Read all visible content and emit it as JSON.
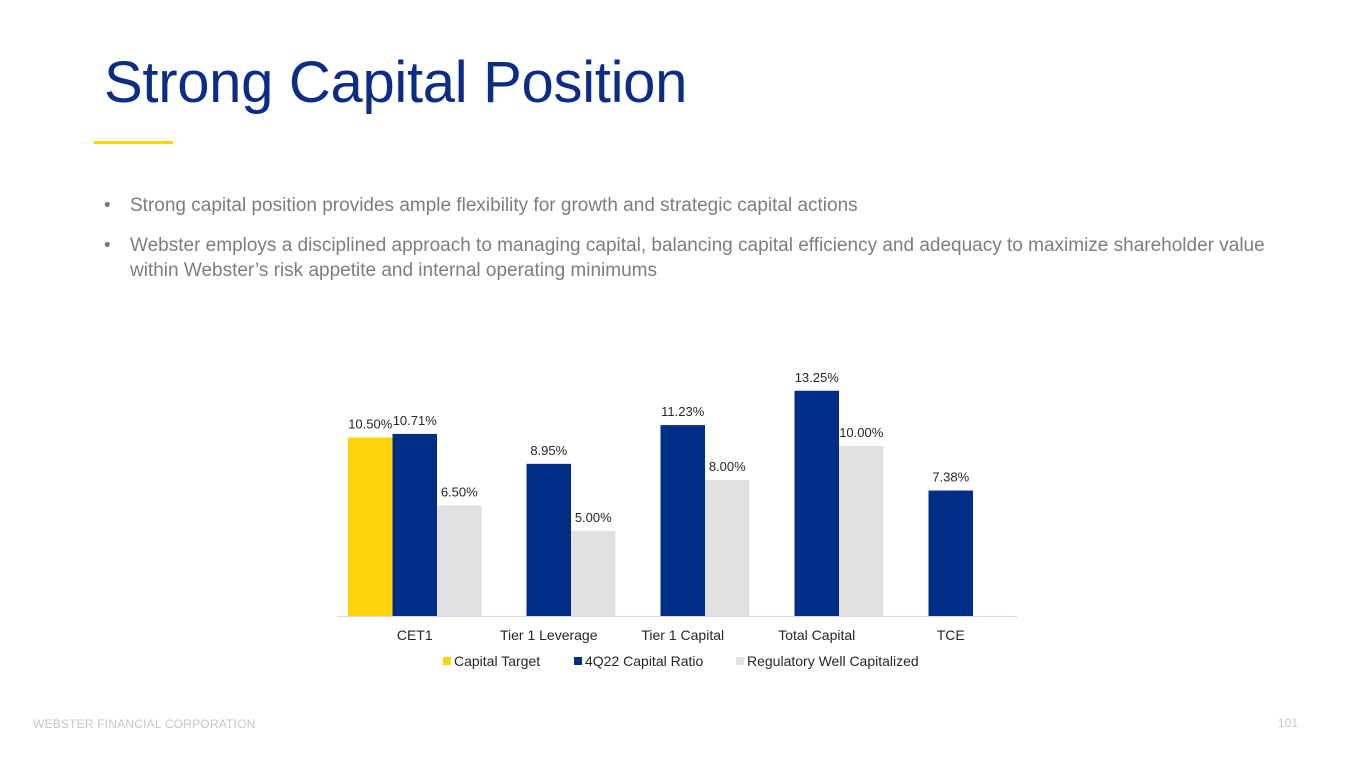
{
  "slide": {
    "title": "Strong Capital Position",
    "bullets": [
      "Strong capital position provides ample flexibility for growth and strategic capital actions",
      "Webster employs a disciplined approach to managing capital, balancing capital efficiency and adequacy to maximize shareholder value within Webster’s risk appetite and internal operating minimums"
    ],
    "bullet_glyph": "•"
  },
  "footer": {
    "company": "WEBSTER FINANCIAL CORPORATION",
    "page_number": "101"
  },
  "colors": {
    "title": "#0c2d83",
    "accent": "#ffd300",
    "capital_target": "#ffd30a",
    "capital_ratio": "#002e87",
    "well_capitalized": "#e1e1e1",
    "axis": "#d0dbe9"
  },
  "chart_data": {
    "type": "bar",
    "title": "",
    "xlabel": "",
    "ylabel": "",
    "ylim": [
      0,
      15
    ],
    "grid": false,
    "legend_position": "bottom",
    "categories": [
      "CET1",
      "Tier 1 Leverage",
      "Tier 1 Capital",
      "Total Capital",
      "TCE"
    ],
    "series": [
      {
        "name": "Capital Target",
        "color": "#ffd30a",
        "values": [
          10.5,
          null,
          null,
          null,
          null
        ],
        "labels": [
          "10.50%",
          null,
          null,
          null,
          null
        ]
      },
      {
        "name": "4Q22 Capital Ratio",
        "color": "#002e87",
        "values": [
          10.71,
          8.95,
          11.23,
          13.25,
          7.38
        ],
        "labels": [
          "10.71%",
          "8.95%",
          "11.23%",
          "13.25%",
          "7.38%"
        ]
      },
      {
        "name": "Regulatory Well Capitalized",
        "color": "#e1e1e1",
        "values": [
          6.5,
          5.0,
          8.0,
          10.0,
          null
        ],
        "labels": [
          "6.50%",
          "5.00%",
          "8.00%",
          "10.00%",
          null
        ]
      }
    ]
  }
}
